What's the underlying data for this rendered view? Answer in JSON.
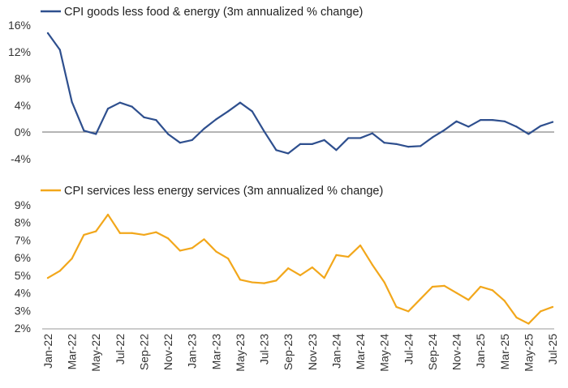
{
  "chart_data": [
    {
      "type": "line",
      "title": "",
      "legend": "CPI goods less food & energy (3m annualized % change)",
      "color": "#2e4f8e",
      "ylim": [
        -6,
        16
      ],
      "yticks": [
        16,
        12,
        8,
        4,
        0,
        -4
      ],
      "ytick_labels": [
        "16%",
        "12%",
        "8%",
        "4%",
        "0%",
        "-4%"
      ],
      "zero_line": true,
      "x": [
        "Jan-22",
        "Feb-22",
        "Mar-22",
        "Apr-22",
        "May-22",
        "Jun-22",
        "Jul-22",
        "Aug-22",
        "Sep-22",
        "Oct-22",
        "Nov-22",
        "Dec-22",
        "Jan-23",
        "Feb-23",
        "Mar-23",
        "Apr-23",
        "May-23",
        "Jun-23",
        "Jul-23",
        "Aug-23",
        "Sep-23",
        "Oct-23",
        "Nov-23",
        "Dec-23",
        "Jan-24",
        "Feb-24",
        "Mar-24",
        "Apr-24",
        "May-24",
        "Jun-24",
        "Jul-24",
        "Aug-24",
        "Sep-24",
        "Oct-24",
        "Nov-24",
        "Dec-24",
        "Jan-25",
        "Feb-25",
        "Mar-25",
        "Apr-25",
        "May-25",
        "Jun-25",
        "Jul-25"
      ],
      "values": [
        14.8,
        12.3,
        4.5,
        0.2,
        -0.3,
        3.5,
        4.4,
        3.8,
        2.2,
        1.8,
        -0.3,
        -1.6,
        -1.2,
        0.5,
        1.9,
        3.1,
        4.4,
        3.1,
        0.1,
        -2.7,
        -3.2,
        -1.8,
        -1.8,
        -1.2,
        -2.7,
        -0.9,
        -0.9,
        -0.2,
        -1.6,
        -1.8,
        -2.2,
        -2.1,
        -0.8,
        0.3,
        1.6,
        0.8,
        1.8,
        1.8,
        1.6,
        0.8,
        -0.3,
        0.9,
        1.5
      ]
    },
    {
      "type": "line",
      "title": "",
      "legend": "CPI services less energy services (3m annualized % change)",
      "color": "#f2a71b",
      "ylim": [
        2,
        9
      ],
      "yticks": [
        9,
        8,
        7,
        6,
        5,
        4,
        3,
        2
      ],
      "ytick_labels": [
        "9%",
        "8%",
        "7%",
        "6%",
        "5%",
        "4%",
        "3%",
        "2%"
      ],
      "x": [
        "Jan-22",
        "Feb-22",
        "Mar-22",
        "Apr-22",
        "May-22",
        "Jun-22",
        "Jul-22",
        "Aug-22",
        "Sep-22",
        "Oct-22",
        "Nov-22",
        "Dec-22",
        "Jan-23",
        "Feb-23",
        "Mar-23",
        "Apr-23",
        "May-23",
        "Jun-23",
        "Jul-23",
        "Aug-23",
        "Sep-23",
        "Oct-23",
        "Nov-23",
        "Dec-23",
        "Jan-24",
        "Feb-24",
        "Mar-24",
        "Apr-24",
        "May-24",
        "Jun-24",
        "Jul-24",
        "Aug-24",
        "Sep-24",
        "Oct-24",
        "Nov-24",
        "Dec-24",
        "Jan-25",
        "Feb-25",
        "Mar-25",
        "Apr-25",
        "May-25",
        "Jun-25",
        "Jul-25"
      ],
      "values": [
        4.85,
        5.25,
        5.95,
        7.3,
        7.5,
        8.45,
        7.4,
        7.4,
        7.3,
        7.45,
        7.1,
        6.4,
        6.55,
        7.05,
        6.35,
        5.95,
        4.75,
        4.6,
        4.55,
        4.7,
        5.4,
        5.0,
        5.45,
        4.85,
        6.15,
        6.05,
        6.7,
        5.6,
        4.6,
        3.2,
        2.95,
        3.65,
        4.35,
        4.4,
        4.0,
        3.6,
        4.35,
        4.15,
        3.55,
        2.6,
        2.25,
        2.95,
        3.2
      ]
    }
  ],
  "x_axis": {
    "labels": [
      "Jan-22",
      "Mar-22",
      "May-22",
      "Jul-22",
      "Sep-22",
      "Nov-22",
      "Jan-23",
      "Mar-23",
      "May-23",
      "Jul-23",
      "Sep-23",
      "Nov-23",
      "Jan-24",
      "Mar-24",
      "May-24",
      "Jul-24",
      "Sep-24",
      "Nov-24",
      "Jan-25",
      "Mar-25",
      "May-25",
      "Jul-25"
    ]
  },
  "colors": {
    "axis": "#999999",
    "zero_line": "#888888",
    "text": "#333333"
  }
}
